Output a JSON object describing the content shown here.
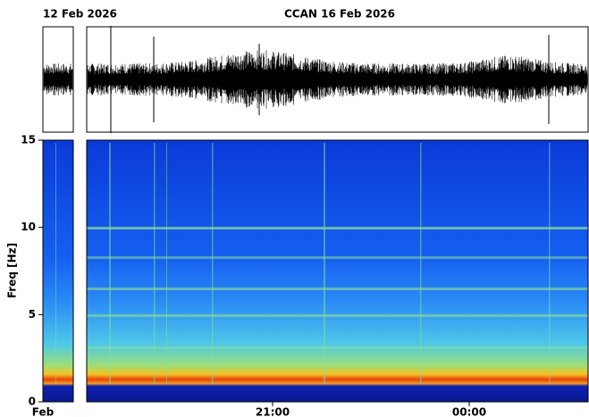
{
  "chart_data": {
    "type": "spectrogram",
    "title": "CCAN  16 Feb 2026",
    "left_title": "12 Feb 2026",
    "left_x_label": "Feb",
    "ylabel": "Freq [Hz]",
    "ylim": [
      0,
      15
    ],
    "yticks": [
      0,
      5,
      10,
      15
    ],
    "x_labels": [
      "21:00",
      "00:00"
    ]
  }
}
